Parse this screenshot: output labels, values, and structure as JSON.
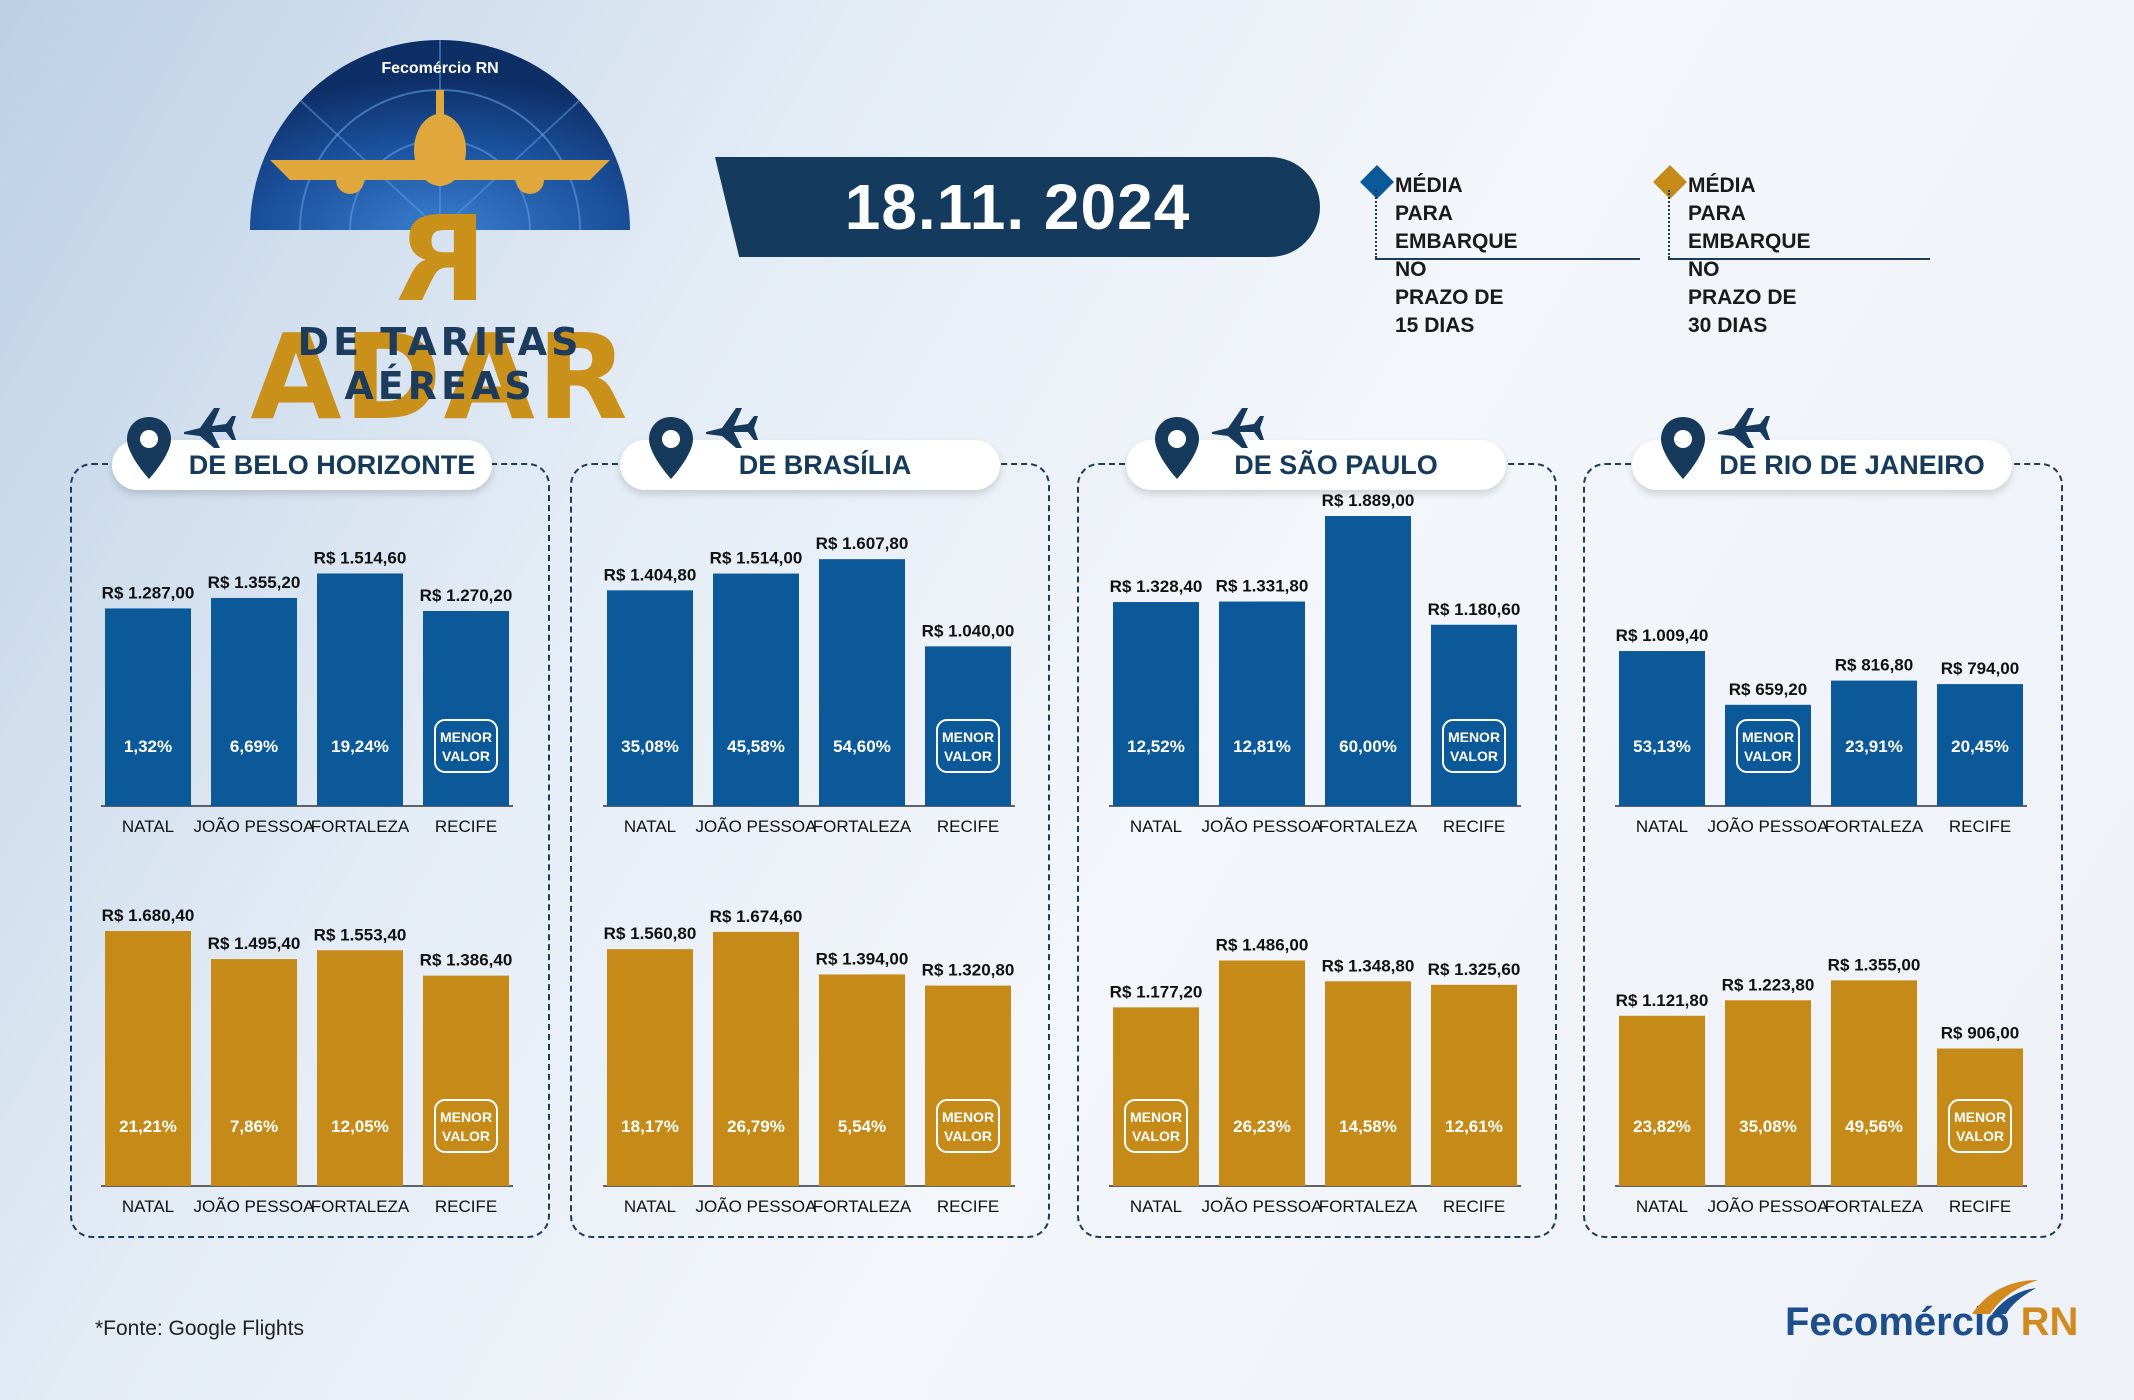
{
  "header": {
    "brand_top": "Fecomércio RN",
    "logo_title": "RADAR",
    "logo_subtitle": "DE TARIFAS AÉREAS",
    "date": "18.11. 2024",
    "colors": {
      "blue": "#0b5998",
      "gold": "#c58a17",
      "navy": "#143b5e"
    }
  },
  "legend": [
    {
      "lines": [
        "MÉDIA PARA",
        "EMBARQUE NO",
        "PRAZO DE 15 DIAS"
      ],
      "color": "#0b5998",
      "icon": "diamond-icon"
    },
    {
      "lines": [
        "MÉDIA PARA",
        "EMBARQUE NO",
        "PRAZO DE 30 DIAS"
      ],
      "color": "#c58a17",
      "icon": "diamond-icon"
    }
  ],
  "footnote": "*Fonte: Google Flights",
  "footer_brand": {
    "main": "Fecomércio",
    "suffix": "RN"
  },
  "icons": [
    "map-pin-icon",
    "airplane-icon"
  ],
  "chart_data": [
    {
      "type": "bar",
      "title": "DE BELO HORIZONTE",
      "categories": [
        "NATAL",
        "JOÃO PESSOA",
        "FORTALEZA",
        "RECIFE"
      ],
      "series": [
        {
          "values": [
            1287.0,
            1355.2,
            1514.6,
            1270.2
          ],
          "labels": [
            "R$ 1.287,00",
            "R$ 1.355,20",
            "R$ 1.514,60",
            "R$ 1.270,20"
          ],
          "pct": [
            "1,32%",
            "6,69%",
            "19,24%",
            "MENOR VALOR"
          ]
        },
        {
          "values": [
            1680.4,
            1495.4,
            1553.4,
            1386.4
          ],
          "labels": [
            "R$ 1.680,40",
            "R$ 1.495,40",
            "R$ 1.553,40",
            "R$ 1.386,40"
          ],
          "pct": [
            "21,21%",
            "7,86%",
            "12,05%",
            "MENOR VALOR"
          ]
        }
      ]
    },
    {
      "type": "bar",
      "title": "DE BRASÍLIA",
      "categories": [
        "NATAL",
        "JOÃO PESSOA",
        "FORTALEZA",
        "RECIFE"
      ],
      "series": [
        {
          "values": [
            1404.8,
            1514.0,
            1607.8,
            1040.0
          ],
          "labels": [
            "R$ 1.404,80",
            "R$ 1.514,00",
            "R$ 1.607,80",
            "R$ 1.040,00"
          ],
          "pct": [
            "35,08%",
            "45,58%",
            "54,60%",
            "MENOR VALOR"
          ]
        },
        {
          "values": [
            1560.8,
            1674.6,
            1394.0,
            1320.8
          ],
          "labels": [
            "R$ 1.560,80",
            "R$ 1.674,60",
            "R$ 1.394,00",
            "R$ 1.320,80"
          ],
          "pct": [
            "18,17%",
            "26,79%",
            "5,54%",
            "MENOR VALOR"
          ]
        }
      ]
    },
    {
      "type": "bar",
      "title": "DE SÃO PAULO",
      "categories": [
        "NATAL",
        "JOÃO PESSOA",
        "FORTALEZA",
        "RECIFE"
      ],
      "series": [
        {
          "values": [
            1328.4,
            1331.8,
            1889.0,
            1180.6
          ],
          "labels": [
            "R$ 1.328,40",
            "R$ 1.331,80",
            "R$ 1.889,00",
            "R$ 1.180,60"
          ],
          "pct": [
            "12,52%",
            "12,81%",
            "60,00%",
            "MENOR VALOR"
          ]
        },
        {
          "values": [
            1177.2,
            1486.0,
            1348.8,
            1325.6
          ],
          "labels": [
            "R$ 1.177,20",
            "R$ 1.486,00",
            "R$ 1.348,80",
            "R$ 1.325,60"
          ],
          "pct": [
            "MENOR VALOR",
            "26,23%",
            "14,58%",
            "12,61%"
          ]
        }
      ]
    },
    {
      "type": "bar",
      "title": "DE RIO DE JANEIRO",
      "categories": [
        "NATAL",
        "JOÃO PESSOA",
        "FORTALEZA",
        "RECIFE"
      ],
      "series": [
        {
          "values": [
            1009.4,
            659.2,
            816.8,
            794.0
          ],
          "labels": [
            "R$ 1.009,40",
            "R$ 659,20",
            "R$ 816,80",
            "R$ 794,00"
          ],
          "pct": [
            "53,13%",
            "MENOR VALOR",
            "23,91%",
            "20,45%"
          ]
        },
        {
          "values": [
            1121.8,
            1223.8,
            1355.0,
            906.0
          ],
          "labels": [
            "R$ 1.121,80",
            "R$ 1.223,80",
            "R$ 1.355,00",
            "R$ 906,00"
          ],
          "pct": [
            "23,82%",
            "35,08%",
            "49,56%",
            "MENOR VALOR"
          ]
        }
      ]
    }
  ]
}
